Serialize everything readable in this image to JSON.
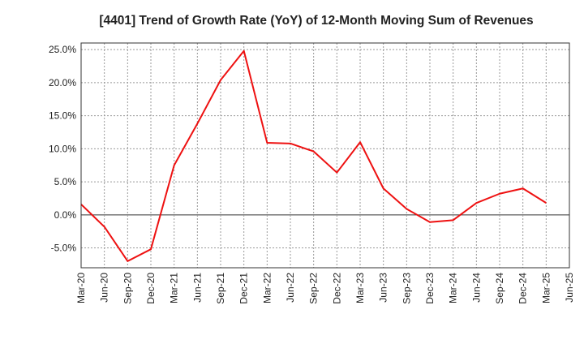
{
  "chart_data": {
    "type": "line",
    "title": "[4401]  Trend of Growth Rate (YoY) of 12-Month Moving Sum of Revenues",
    "xlabel": "",
    "ylabel": "",
    "categories": [
      "Mar-20",
      "Jun-20",
      "Sep-20",
      "Dec-20",
      "Mar-21",
      "Jun-21",
      "Sep-21",
      "Dec-21",
      "Mar-22",
      "Jun-22",
      "Sep-22",
      "Dec-22",
      "Mar-23",
      "Jun-23",
      "Sep-23",
      "Dec-23",
      "Mar-24",
      "Jun-24",
      "Sep-24",
      "Dec-24",
      "Mar-25",
      "Jun-25"
    ],
    "y_tick_labels": [
      "25.0%",
      "20.0%",
      "15.0%",
      "10.0%",
      "5.0%",
      "0.0%",
      "-5.0%"
    ],
    "y_ticks": [
      25,
      20,
      15,
      10,
      5,
      0,
      -5
    ],
    "ylim": [
      -8,
      26
    ],
    "grid": true,
    "series": [
      {
        "values": [
          1.6,
          -1.8,
          -7.0,
          -5.2,
          7.5,
          13.8,
          20.4,
          24.8,
          10.9,
          10.8,
          9.6,
          6.4,
          11.0,
          4.0,
          0.9,
          -1.1,
          -0.8,
          1.8,
          3.2,
          4.0,
          1.8,
          null
        ],
        "color": "#ee1111"
      }
    ]
  }
}
